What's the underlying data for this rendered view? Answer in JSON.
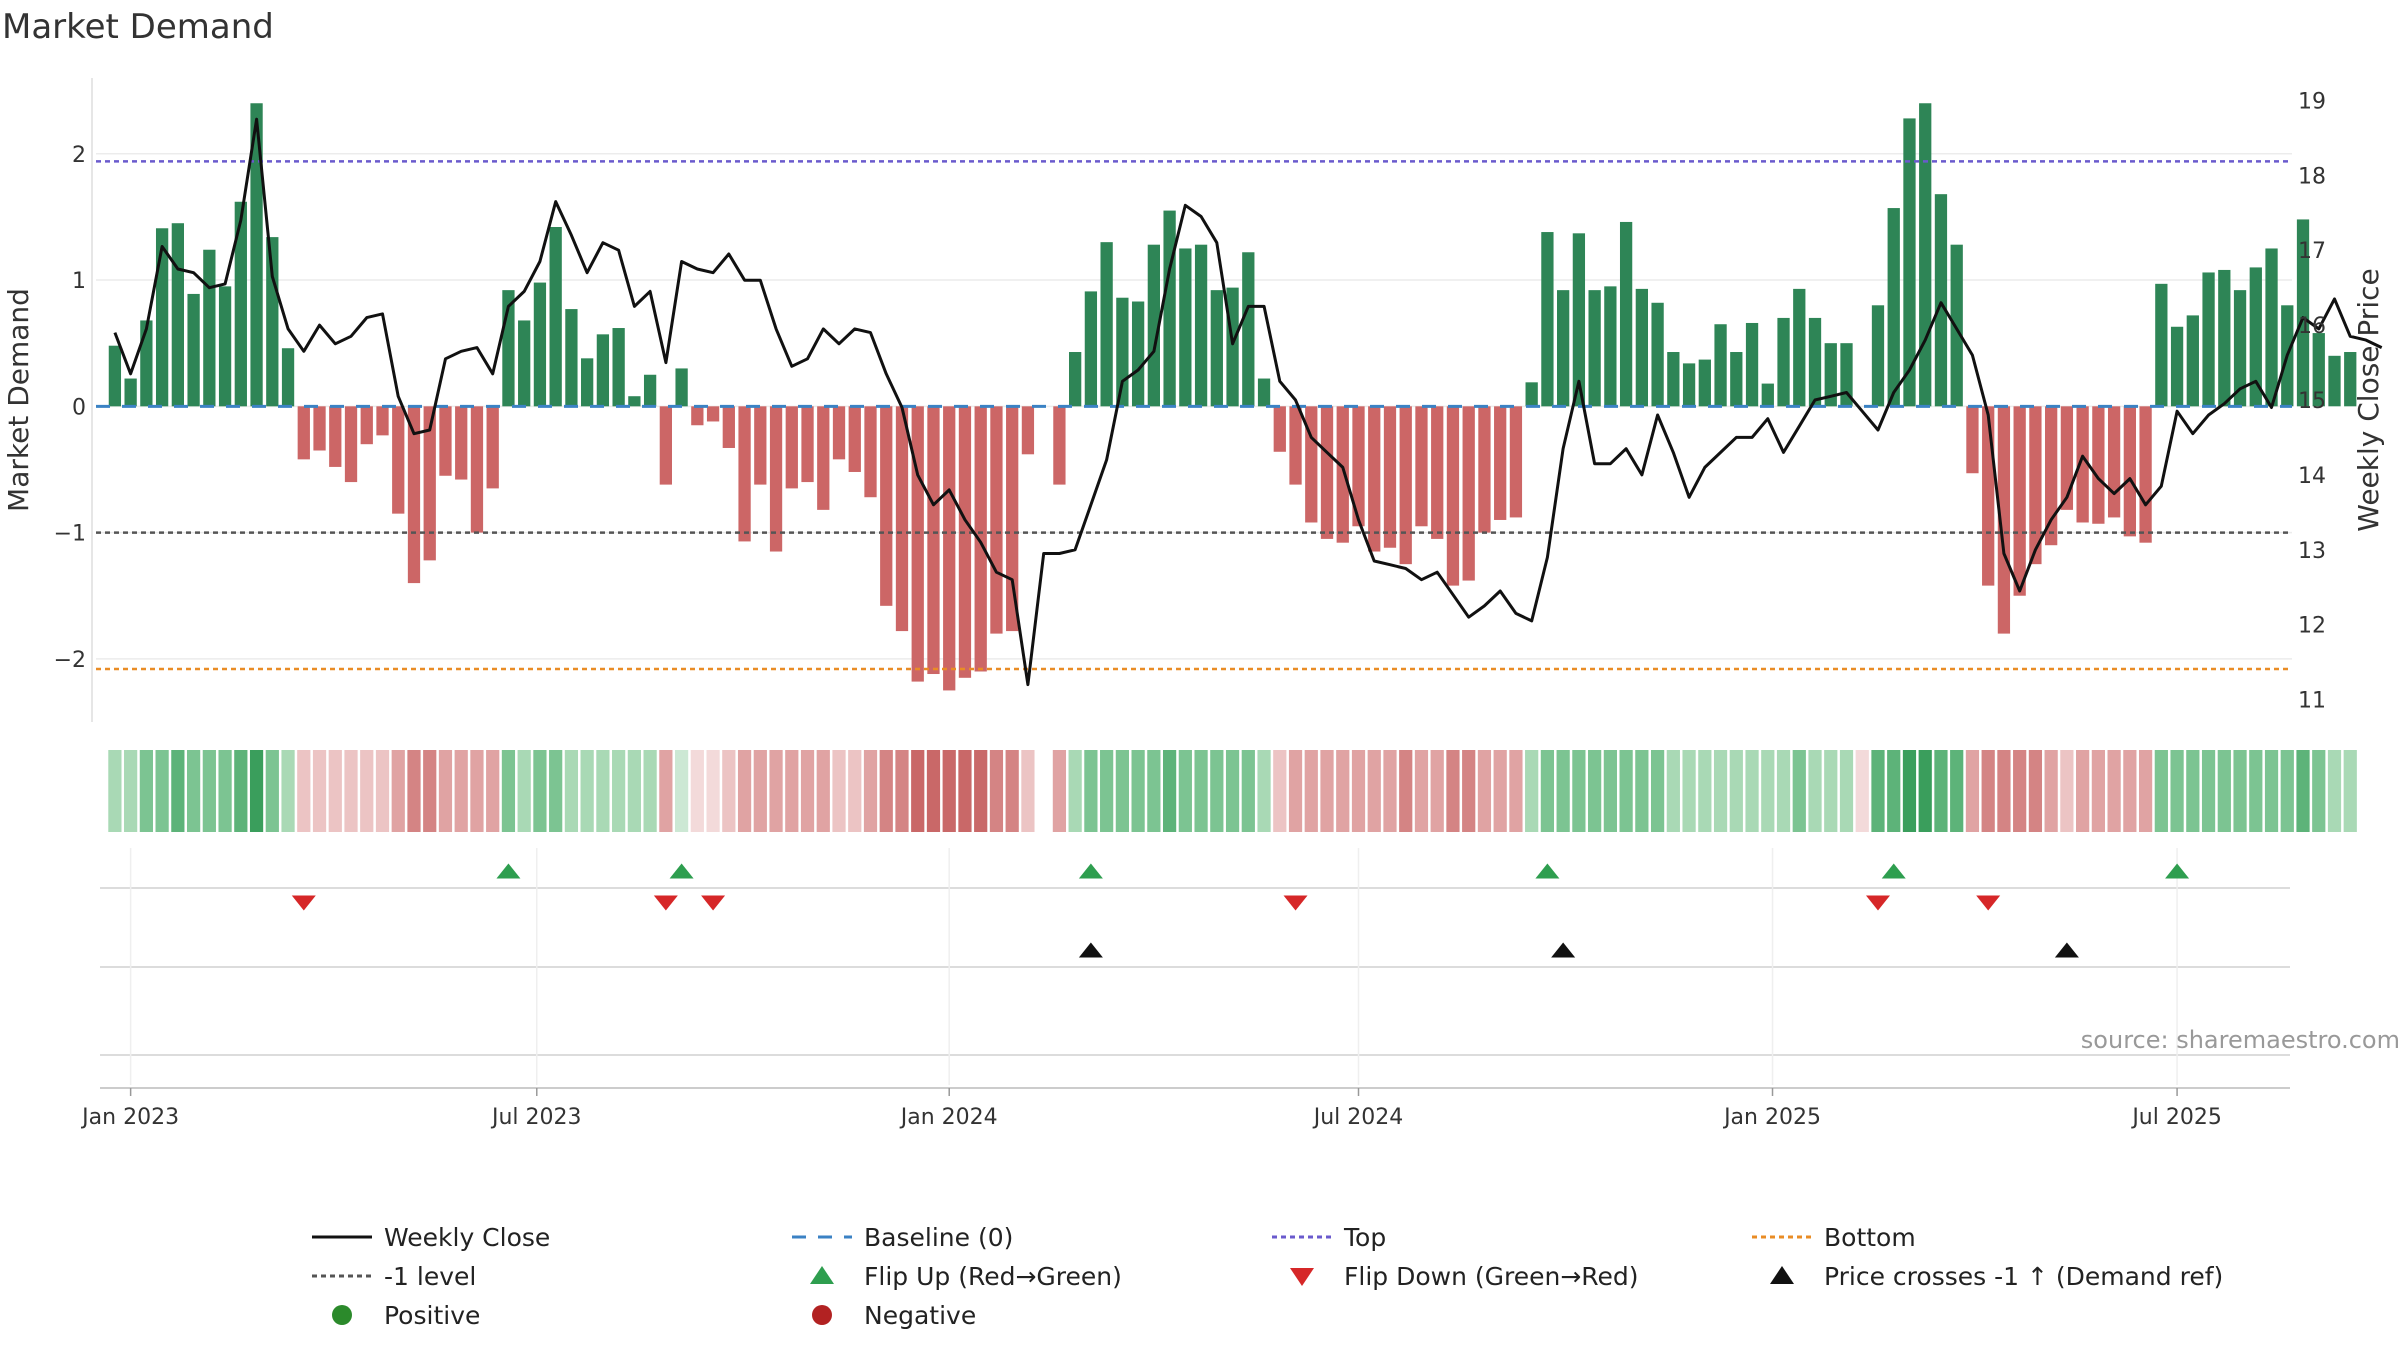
{
  "chart_data": {
    "type": "bar",
    "title": "Market Demand",
    "ylabel": "Market Demand",
    "y2label": "Weekly Close Price",
    "ylim": [
      -2.5,
      2.6
    ],
    "y2lim": [
      10.7,
      19.3
    ],
    "yticks": [
      2,
      1,
      0,
      -1,
      -2
    ],
    "ytick_labels": [
      "2",
      "1",
      "0",
      "−1",
      "−2"
    ],
    "y2ticks": [
      19,
      18,
      17,
      16,
      15,
      14,
      13,
      12,
      11
    ],
    "y2tick_labels": [
      "19",
      "18",
      "17",
      "16",
      "15",
      "14",
      "13",
      "12",
      "11"
    ],
    "xlim_week_index": [
      -1.2,
      138.3
    ],
    "xticks": [
      {
        "label": "Jan 2023",
        "week": 1
      },
      {
        "label": "Jul 2023",
        "week": 26.8
      },
      {
        "label": "Jan 2024",
        "week": 53
      },
      {
        "label": "Jul 2024",
        "week": 79
      },
      {
        "label": "Jan 2025",
        "week": 105.3
      },
      {
        "label": "Jul 2025",
        "week": 131
      }
    ],
    "reference_lines": {
      "top": 1.94,
      "bottom": -2.08,
      "minus_one": -1.0,
      "baseline": 0
    },
    "series": [
      {
        "name": "Market Demand",
        "values": [
          0.48,
          0.22,
          0.68,
          1.41,
          1.45,
          0.89,
          1.24,
          0.95,
          1.62,
          2.4,
          1.34,
          0.46,
          -0.42,
          -0.35,
          -0.48,
          -0.6,
          -0.3,
          -0.23,
          -0.85,
          -1.4,
          -1.22,
          -0.55,
          -0.58,
          -1.0,
          -0.65,
          0.92,
          0.68,
          0.98,
          1.42,
          0.77,
          0.38,
          0.57,
          0.62,
          0.08,
          0.25,
          -0.62,
          0.3,
          -0.15,
          -0.12,
          -0.33,
          -1.07,
          -0.62,
          -1.15,
          -0.65,
          -0.6,
          -0.82,
          -0.42,
          -0.52,
          -0.72,
          -1.58,
          -1.78,
          -2.18,
          -2.12,
          -2.25,
          -2.15,
          -2.1,
          -1.8,
          -1.78,
          -0.38,
          0.0,
          -0.62,
          0.43,
          0.91,
          1.3,
          0.86,
          0.83,
          1.28,
          1.55,
          1.25,
          1.28,
          0.92,
          0.94,
          1.22,
          0.22,
          -0.36,
          -0.62,
          -0.92,
          -1.05,
          -1.08,
          -0.95,
          -1.15,
          -1.12,
          -1.25,
          -0.95,
          -1.05,
          -1.42,
          -1.38,
          -1.0,
          -0.9,
          -0.88,
          0.19,
          1.38,
          0.92,
          1.37,
          0.92,
          0.95,
          1.46,
          0.93,
          0.82,
          0.43,
          0.34,
          0.37,
          0.65,
          0.43,
          0.66,
          0.18,
          0.7,
          0.93,
          0.7,
          0.5,
          0.5,
          0.0,
          0.8,
          1.57,
          2.28,
          2.4,
          1.68,
          1.28,
          -0.53,
          -1.42,
          -1.8,
          -1.5,
          -1.25,
          -1.1,
          -0.82,
          -0.92,
          -0.93,
          -0.88,
          -1.03,
          -1.08,
          0.97,
          0.63,
          0.72,
          1.06,
          1.08,
          0.92,
          1.1,
          1.25,
          0.8,
          1.48,
          0.58,
          0.4,
          0.43
        ]
      },
      {
        "name": "Weekly Close",
        "values": [
          15.9,
          15.35,
          15.95,
          17.05,
          16.75,
          16.7,
          16.5,
          16.55,
          17.4,
          18.75,
          16.65,
          15.95,
          15.65,
          16.0,
          15.75,
          15.85,
          16.1,
          16.15,
          15.05,
          14.55,
          14.6,
          15.55,
          15.65,
          15.7,
          15.35,
          16.25,
          16.45,
          16.85,
          17.65,
          17.2,
          16.7,
          17.1,
          17.0,
          16.25,
          16.45,
          15.5,
          16.85,
          16.75,
          16.7,
          16.95,
          16.6,
          16.6,
          15.95,
          15.45,
          15.55,
          15.95,
          15.75,
          15.95,
          15.9,
          15.35,
          14.9,
          14.0,
          13.6,
          13.8,
          13.4,
          13.1,
          12.7,
          12.6,
          11.2,
          12.95,
          12.95,
          13.0,
          13.6,
          14.2,
          15.25,
          15.4,
          15.65,
          16.75,
          17.6,
          17.45,
          17.1,
          15.75,
          16.25,
          16.25,
          15.25,
          15.0,
          14.5,
          14.3,
          14.1,
          13.4,
          12.85,
          12.8,
          12.75,
          12.6,
          12.7,
          12.4,
          12.1,
          12.25,
          12.45,
          12.15,
          12.05,
          12.9,
          14.35,
          15.25,
          14.15,
          14.15,
          14.35,
          14.0,
          14.8,
          14.3,
          13.7,
          14.1,
          14.3,
          14.5,
          14.5,
          14.75,
          14.3,
          14.65,
          15.0,
          15.05,
          15.1,
          14.85,
          14.6,
          15.1,
          15.4,
          15.8,
          16.3,
          15.95,
          15.6,
          14.8,
          12.95,
          12.45,
          13.0,
          13.4,
          13.7,
          14.25,
          13.95,
          13.75,
          13.95,
          13.6,
          13.85,
          14.85,
          14.55,
          14.8,
          14.95,
          15.15,
          15.25,
          14.9,
          15.6,
          16.1,
          15.95,
          16.35,
          15.85,
          15.8,
          15.7
        ]
      }
    ],
    "strip_colors": [
      "#a9d9b5",
      "#a9d9b5",
      "#7cc492",
      "#7cc492",
      "#5db379",
      "#7cc492",
      "#7cc492",
      "#7cc492",
      "#5db379",
      "#3a9e5c",
      "#7cc492",
      "#a9d9b5",
      "#ecc4c4",
      "#ecc4c4",
      "#ecc4c4",
      "#ecc4c4",
      "#ecc4c4",
      "#ecc4c4",
      "#e0a3a3",
      "#d48484",
      "#d48484",
      "#e0a3a3",
      "#e0a3a3",
      "#e0a3a3",
      "#e0a3a3",
      "#7cc492",
      "#a9d9b5",
      "#7cc492",
      "#7cc492",
      "#a9d9b5",
      "#a9d9b5",
      "#a9d9b5",
      "#a9d9b5",
      "#a9d9b5",
      "#a9d9b5",
      "#e0a3a3",
      "#cce8d4",
      "#f3dada",
      "#f3dada",
      "#ecc4c4",
      "#e0a3a3",
      "#e0a3a3",
      "#e0a3a3",
      "#e0a3a3",
      "#e0a3a3",
      "#e0a3a3",
      "#ecc4c4",
      "#ecc4c4",
      "#e0a3a3",
      "#d48484",
      "#d48484",
      "#c96868",
      "#c96868",
      "#c96868",
      "#c96868",
      "#c96868",
      "#d48484",
      "#d48484",
      "#ecc4c4",
      "#ffffff",
      "#e0a3a3",
      "#a9d9b5",
      "#7cc492",
      "#7cc492",
      "#7cc492",
      "#7cc492",
      "#7cc492",
      "#5db379",
      "#7cc492",
      "#7cc492",
      "#7cc492",
      "#7cc492",
      "#7cc492",
      "#a9d9b5",
      "#ecc4c4",
      "#e0a3a3",
      "#e0a3a3",
      "#e0a3a3",
      "#e0a3a3",
      "#e0a3a3",
      "#e0a3a3",
      "#e0a3a3",
      "#d48484",
      "#e0a3a3",
      "#e0a3a3",
      "#d48484",
      "#d48484",
      "#e0a3a3",
      "#e0a3a3",
      "#e0a3a3",
      "#a9d9b5",
      "#7cc492",
      "#7cc492",
      "#7cc492",
      "#7cc492",
      "#7cc492",
      "#7cc492",
      "#7cc492",
      "#7cc492",
      "#a9d9b5",
      "#a9d9b5",
      "#a9d9b5",
      "#a9d9b5",
      "#a9d9b5",
      "#a9d9b5",
      "#a9d9b5",
      "#a9d9b5",
      "#7cc492",
      "#a9d9b5",
      "#a9d9b5",
      "#a9d9b5",
      "#f3dada",
      "#5db379",
      "#5db379",
      "#3a9e5c",
      "#3a9e5c",
      "#5db379",
      "#5db379",
      "#e0a3a3",
      "#d48484",
      "#d48484",
      "#d48484",
      "#d48484",
      "#e0a3a3",
      "#ecc4c4",
      "#e0a3a3",
      "#e0a3a3",
      "#e0a3a3",
      "#e0a3a3",
      "#e0a3a3",
      "#7cc492",
      "#7cc492",
      "#7cc492",
      "#7cc492",
      "#7cc492",
      "#7cc492",
      "#7cc492",
      "#7cc492",
      "#7cc492",
      "#5db379",
      "#7cc492",
      "#a9d9b5",
      "#a9d9b5"
    ],
    "event_rows": [
      {
        "name": "flip-up",
        "weeks": [
          25,
          36,
          62,
          91,
          113,
          131
        ]
      },
      {
        "name": "flip-down",
        "weeks": [
          12,
          35,
          38,
          75,
          112,
          119
        ]
      },
      {
        "name": "price-cross",
        "weeks": [
          62,
          92,
          124
        ]
      }
    ],
    "legend": [
      {
        "label": "Weekly Close",
        "symbol": "line-solid",
        "color": "#111111"
      },
      {
        "label": "Baseline (0)",
        "symbol": "line-dash",
        "color": "#3b82c4"
      },
      {
        "label": "Top",
        "symbol": "line-dot",
        "color": "#6a5acd"
      },
      {
        "label": "Bottom",
        "symbol": "line-dot",
        "color": "#e98c25"
      },
      {
        "label": "-1 level",
        "symbol": "line-dot",
        "color": "#555555"
      },
      {
        "label": "Flip Up (Red→Green)",
        "symbol": "triangle-up",
        "color": "#2e9e4f"
      },
      {
        "label": "Flip Down (Green→Red)",
        "symbol": "triangle-down",
        "color": "#d62728"
      },
      {
        "label": "Price crosses -1 ↑ (Demand ref)",
        "symbol": "triangle-up",
        "color": "#111111"
      },
      {
        "label": "Positive",
        "symbol": "circle",
        "color": "#2b8a2b"
      },
      {
        "label": "Negative",
        "symbol": "circle",
        "color": "#b22222"
      }
    ],
    "source_text": "source: sharemaestro.com"
  },
  "colors": {
    "positive_bar": "#2e8556",
    "negative_bar": "#cc6666",
    "price_line": "#111111",
    "baseline": "#3b82c4",
    "top": "#6a5acd",
    "bottom": "#e98c25",
    "minus_one": "#555555",
    "flip_up": "#2e9e4f",
    "flip_down": "#d62728",
    "cross": "#111111"
  }
}
